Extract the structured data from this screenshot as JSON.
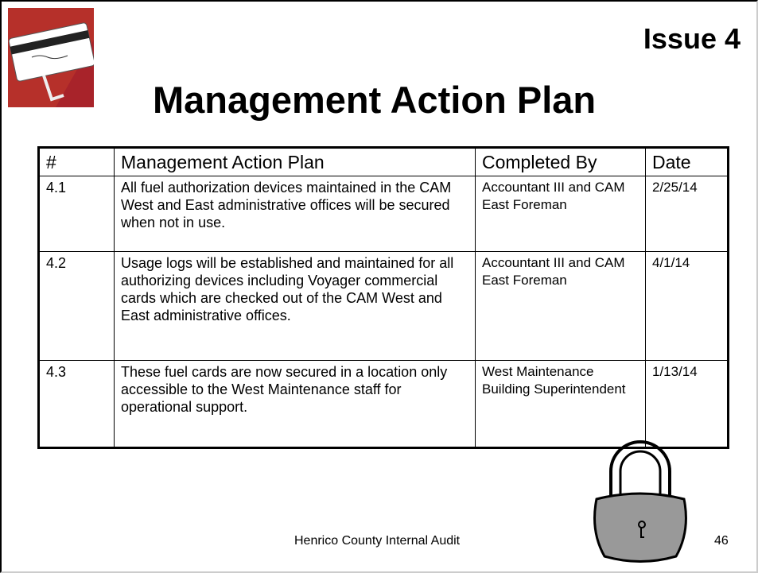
{
  "issue": "Issue 4",
  "title": "Management Action Plan",
  "table": {
    "headers": [
      "#",
      "Management Action Plan",
      "Completed By",
      "Date"
    ],
    "rows": [
      [
        "4.1",
        "All fuel authorization devices maintained in the CAM West and East administrative offices will be secured when not in use.",
        "Accountant III and CAM East Foreman",
        "2/25/14"
      ],
      [
        "4.2",
        "Usage logs will be established and maintained for all authorizing devices including Voyager commercial cards which are checked out of the CAM West and East administrative offices.",
        "Accountant III and CAM East Foreman",
        "4/1/14"
      ],
      [
        "4.3",
        "These fuel cards are now secured in a location only accessible to the West Maintenance staff for operational support.",
        "West Maintenance Building Superintendent",
        "1/13/14"
      ]
    ]
  },
  "footer": "Henrico County Internal Audit",
  "page_number": "46"
}
